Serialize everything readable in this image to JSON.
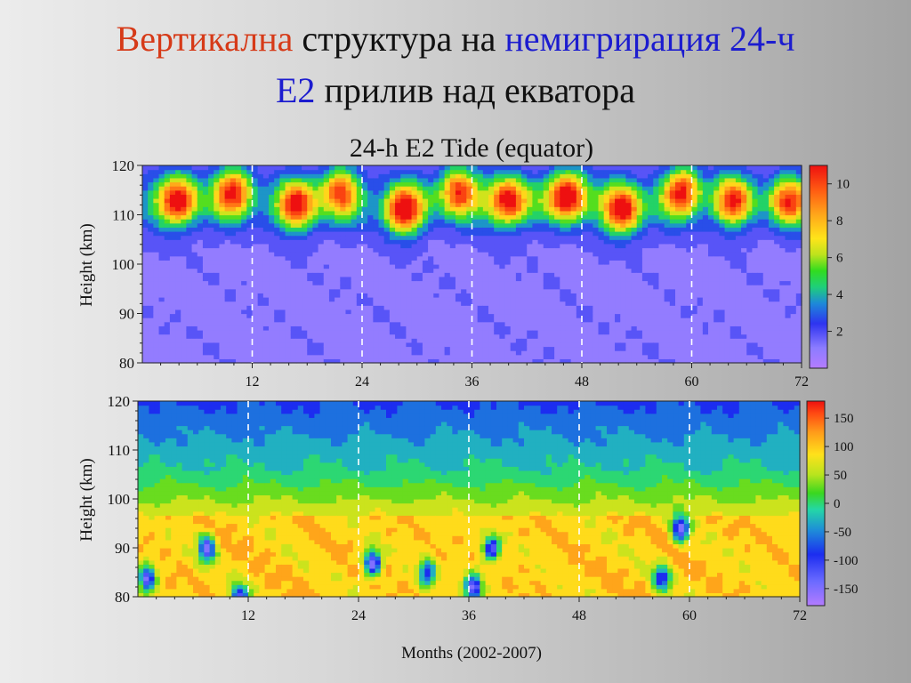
{
  "title": {
    "line1": {
      "a": "Вертикална",
      "b": " структура на ",
      "c": "немигрирация 24-ч"
    },
    "line2": {
      "a": "Е2",
      "b": " прилив над екватора"
    }
  },
  "colors": {
    "title_red": "#d63a18",
    "title_blue": "#1c1ccf"
  },
  "chart_data": [
    {
      "type": "heatmap",
      "title": "24-h E2 Tide  (equator)",
      "xlabel": "",
      "ylabel": "Height  (km)",
      "xlim": [
        0,
        72
      ],
      "ylim": [
        80,
        120
      ],
      "xticks": [
        "12",
        "24",
        "36",
        "48",
        "60",
        "72"
      ],
      "yticks": [
        "80",
        "90",
        "100",
        "110",
        "120"
      ],
      "dashed_vlines_months": [
        12,
        24,
        36,
        48,
        60
      ],
      "colorbar": {
        "ticks": [
          "2",
          "4",
          "6",
          "8",
          "10"
        ],
        "range": [
          0,
          11
        ]
      },
      "peaks": [
        {
          "x": 4,
          "y": 113,
          "v": 10
        },
        {
          "x": 10,
          "y": 115,
          "v": 9
        },
        {
          "x": 17,
          "y": 112,
          "v": 9
        },
        {
          "x": 21.5,
          "y": 115,
          "v": 8
        },
        {
          "x": 28.5,
          "y": 111,
          "v": 10
        },
        {
          "x": 34.5,
          "y": 115,
          "v": 9
        },
        {
          "x": 40,
          "y": 113,
          "v": 10
        },
        {
          "x": 46.5,
          "y": 114,
          "v": 11
        },
        {
          "x": 52.5,
          "y": 111,
          "v": 10
        },
        {
          "x": 59,
          "y": 115,
          "v": 9
        },
        {
          "x": 64.5,
          "y": 113,
          "v": 8
        },
        {
          "x": 70.5,
          "y": 113,
          "v": 8
        }
      ]
    },
    {
      "type": "heatmap",
      "title": "",
      "xlabel": "Months  (2002-2007)",
      "ylabel": "Height  (km)",
      "xlim": [
        0,
        72
      ],
      "ylim": [
        80,
        120
      ],
      "xticks": [
        "12",
        "24",
        "36",
        "48",
        "60",
        "72"
      ],
      "yticks": [
        "80",
        "90",
        "100",
        "110",
        "120"
      ],
      "dashed_vlines_months": [
        12,
        24,
        36,
        48,
        60
      ],
      "colorbar": {
        "ticks": [
          "150",
          "100",
          "50",
          "0",
          "-50",
          "-100",
          "-150"
        ],
        "range": [
          -180,
          180
        ]
      },
      "troughs": [
        {
          "x": 1,
          "y": 84,
          "v": -140
        },
        {
          "x": 7.5,
          "y": 90,
          "v": -150
        },
        {
          "x": 11,
          "y": 80,
          "v": -120
        },
        {
          "x": 25.5,
          "y": 87,
          "v": -160
        },
        {
          "x": 31.5,
          "y": 85,
          "v": -100
        },
        {
          "x": 36.5,
          "y": 82,
          "v": -160
        },
        {
          "x": 38.5,
          "y": 90,
          "v": -120
        },
        {
          "x": 57,
          "y": 84,
          "v": -100
        },
        {
          "x": 59,
          "y": 94,
          "v": -150
        }
      ]
    }
  ]
}
